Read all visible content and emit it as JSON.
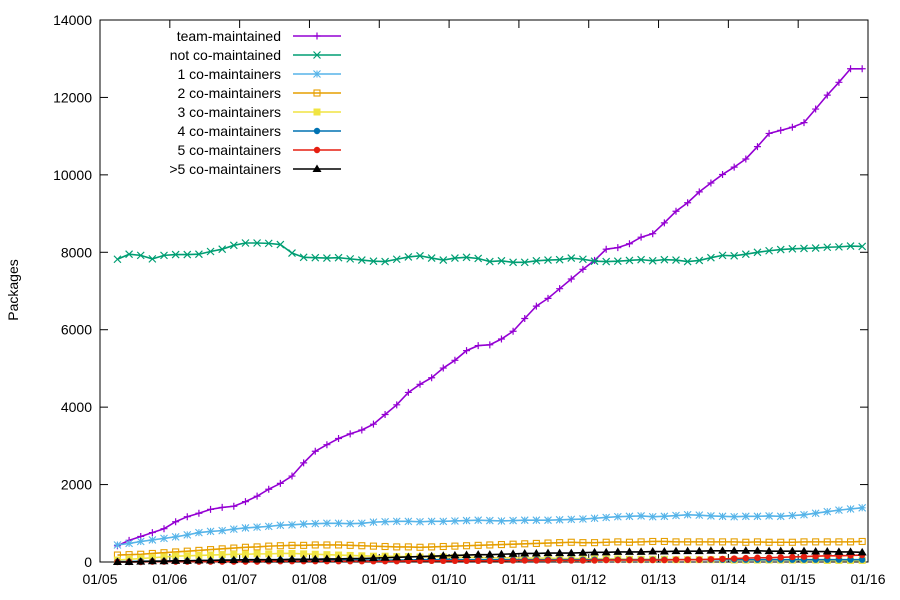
{
  "chart_data": {
    "type": "line",
    "title": "",
    "xlabel": "",
    "ylabel": "Packages",
    "xlim": [
      "2005-01",
      "2016-01"
    ],
    "ylim": [
      0,
      14000
    ],
    "x_tick_labels": [
      "01/05",
      "01/06",
      "01/07",
      "01/08",
      "01/09",
      "01/10",
      "01/11",
      "01/12",
      "01/13",
      "01/14",
      "01/15",
      "01/16"
    ],
    "y_tick_labels": [
      "0",
      "2000",
      "4000",
      "6000",
      "8000",
      "10000",
      "12000",
      "14000"
    ],
    "grid": false,
    "legend_position": "top-left",
    "x": [
      "2005-04",
      "2005-06",
      "2005-08",
      "2005-10",
      "2005-12",
      "2006-02",
      "2006-04",
      "2006-06",
      "2006-08",
      "2006-10",
      "2006-12",
      "2007-02",
      "2007-04",
      "2007-06",
      "2007-08",
      "2007-10",
      "2007-12",
      "2008-02",
      "2008-04",
      "2008-06",
      "2008-08",
      "2008-10",
      "2008-12",
      "2009-02",
      "2009-04",
      "2009-06",
      "2009-08",
      "2009-10",
      "2009-12",
      "2010-02",
      "2010-04",
      "2010-06",
      "2010-08",
      "2010-10",
      "2010-12",
      "2011-02",
      "2011-04",
      "2011-06",
      "2011-08",
      "2011-10",
      "2011-12",
      "2012-02",
      "2012-04",
      "2012-06",
      "2012-08",
      "2012-10",
      "2012-12",
      "2013-02",
      "2013-04",
      "2013-06",
      "2013-08",
      "2013-10",
      "2013-12",
      "2014-02",
      "2014-04",
      "2014-06",
      "2014-08",
      "2014-10",
      "2014-12",
      "2015-02",
      "2015-04",
      "2015-06",
      "2015-08",
      "2015-10",
      "2015-12"
    ],
    "series": [
      {
        "name": "team-maintained",
        "color": "#9400d3",
        "marker": "plus",
        "values": [
          420,
          560,
          660,
          760,
          860,
          1040,
          1170,
          1260,
          1360,
          1410,
          1440,
          1560,
          1700,
          1880,
          2030,
          2220,
          2560,
          2860,
          3030,
          3190,
          3310,
          3410,
          3560,
          3810,
          4060,
          4380,
          4590,
          4760,
          5010,
          5210,
          5460,
          5590,
          5610,
          5760,
          5960,
          6290,
          6610,
          6810,
          7060,
          7310,
          7560,
          7790,
          8080,
          8120,
          8220,
          8390,
          8480,
          8760,
          9060,
          9280,
          9560,
          9790,
          10010,
          10200,
          10410,
          10730,
          11070,
          11150,
          11230,
          11350,
          11700,
          12060,
          12390,
          12740,
          12740
        ]
      },
      {
        "name": "not co-maintained",
        "color": "#009e73",
        "marker": "x",
        "values": [
          7820,
          7950,
          7920,
          7830,
          7920,
          7940,
          7940,
          7950,
          8020,
          8080,
          8180,
          8240,
          8240,
          8230,
          8200,
          7980,
          7870,
          7860,
          7850,
          7860,
          7830,
          7800,
          7770,
          7760,
          7820,
          7880,
          7910,
          7850,
          7800,
          7850,
          7870,
          7840,
          7760,
          7780,
          7740,
          7740,
          7780,
          7800,
          7810,
          7850,
          7820,
          7770,
          7760,
          7770,
          7790,
          7810,
          7780,
          7810,
          7800,
          7760,
          7790,
          7860,
          7920,
          7910,
          7950,
          8000,
          8040,
          8070,
          8090,
          8100,
          8110,
          8130,
          8140,
          8160,
          8150
        ]
      },
      {
        "name": "1 co-maintainers",
        "color": "#56b4e9",
        "marker": "star",
        "values": [
          440,
          480,
          530,
          570,
          610,
          650,
          700,
          760,
          790,
          810,
          850,
          880,
          900,
          920,
          950,
          960,
          980,
          990,
          1000,
          1000,
          990,
          1000,
          1030,
          1040,
          1050,
          1050,
          1040,
          1050,
          1050,
          1060,
          1070,
          1080,
          1070,
          1060,
          1070,
          1080,
          1080,
          1080,
          1090,
          1100,
          1110,
          1130,
          1150,
          1170,
          1180,
          1190,
          1170,
          1180,
          1200,
          1220,
          1210,
          1190,
          1180,
          1170,
          1180,
          1180,
          1190,
          1180,
          1200,
          1220,
          1260,
          1300,
          1340,
          1370,
          1400
        ]
      },
      {
        "name": "2 co-maintainers",
        "color": "#e69f00",
        "marker": "square",
        "values": [
          180,
          190,
          200,
          220,
          240,
          260,
          280,
          300,
          320,
          340,
          360,
          380,
          390,
          410,
          420,
          430,
          430,
          440,
          440,
          440,
          430,
          420,
          410,
          400,
          390,
          390,
          380,
          390,
          400,
          410,
          420,
          430,
          440,
          450,
          460,
          470,
          480,
          490,
          500,
          510,
          500,
          500,
          510,
          520,
          510,
          520,
          530,
          530,
          520,
          520,
          520,
          520,
          520,
          520,
          510,
          520,
          510,
          510,
          510,
          520,
          520,
          520,
          520,
          520,
          530
        ]
      },
      {
        "name": "3 co-maintainers",
        "color": "#f0e442",
        "marker": "filled-square",
        "values": [
          50,
          70,
          90,
          110,
          130,
          150,
          160,
          170,
          180,
          190,
          200,
          200,
          210,
          210,
          220,
          220,
          210,
          200,
          190,
          180,
          170,
          160,
          150,
          150,
          140,
          140,
          130,
          130,
          130,
          120,
          120,
          120,
          110,
          110,
          110,
          100,
          100,
          100,
          90,
          90,
          90,
          80,
          80,
          80,
          70,
          70,
          70,
          70,
          60,
          60,
          60,
          60,
          60,
          50,
          50,
          50,
          50,
          50,
          50,
          50,
          50,
          40,
          40,
          40,
          40
        ]
      },
      {
        "name": "4 co-maintainers",
        "color": "#0072b2",
        "marker": "filled-circle",
        "values": [
          10,
          10,
          20,
          20,
          20,
          30,
          30,
          30,
          30,
          40,
          40,
          40,
          40,
          40,
          50,
          50,
          50,
          50,
          50,
          50,
          50,
          50,
          50,
          50,
          50,
          50,
          60,
          60,
          60,
          60,
          60,
          60,
          60,
          60,
          60,
          60,
          60,
          60,
          60,
          60,
          60,
          60,
          60,
          60,
          60,
          60,
          60,
          60,
          60,
          60,
          60,
          60,
          60,
          60,
          60,
          60,
          60,
          60,
          60,
          60,
          60,
          60,
          60,
          60,
          60
        ]
      },
      {
        "name": "5 co-maintainers",
        "color": "#e51e10",
        "marker": "filled-circle",
        "values": [
          0,
          0,
          0,
          10,
          10,
          10,
          10,
          10,
          10,
          10,
          10,
          10,
          10,
          20,
          20,
          20,
          20,
          20,
          20,
          20,
          20,
          20,
          20,
          20,
          20,
          30,
          30,
          30,
          30,
          30,
          30,
          30,
          30,
          30,
          40,
          40,
          40,
          40,
          40,
          40,
          40,
          40,
          50,
          50,
          50,
          50,
          50,
          50,
          60,
          60,
          60,
          70,
          80,
          90,
          100,
          110,
          110,
          120,
          130,
          140,
          150,
          160,
          160,
          170,
          180
        ]
      },
      {
        "name": ">5 co-maintainers",
        "color": "#000000",
        "marker": "filled-triangle",
        "values": [
          0,
          0,
          10,
          20,
          20,
          30,
          30,
          40,
          40,
          50,
          50,
          60,
          60,
          60,
          60,
          70,
          70,
          70,
          80,
          80,
          90,
          90,
          100,
          110,
          120,
          130,
          140,
          150,
          160,
          170,
          180,
          190,
          190,
          200,
          210,
          220,
          220,
          230,
          230,
          230,
          240,
          250,
          250,
          260,
          260,
          260,
          270,
          270,
          280,
          280,
          280,
          290,
          290,
          290,
          290,
          290,
          280,
          280,
          280,
          280,
          270,
          270,
          260,
          260,
          250
        ]
      }
    ]
  }
}
